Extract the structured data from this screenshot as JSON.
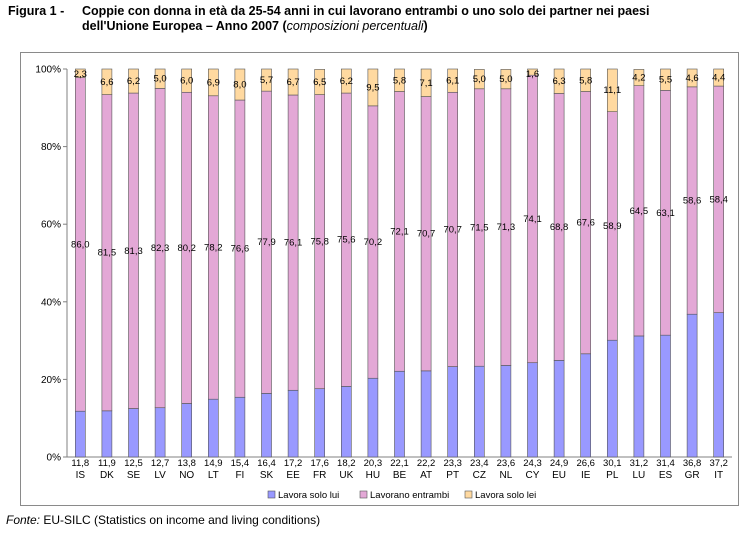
{
  "title": {
    "figure_label": "Figura 1 -",
    "line1": "Coppie con donna in età da 25-54 anni in cui lavorano entrambi o uno solo dei partner nei paesi",
    "line2": "dell'Unione Europea – Anno 2007 (",
    "line2_sub": "composizioni percentuali",
    "line2_end": ")"
  },
  "source": {
    "label": "Fonte:",
    "text": "EU-SILC (Statistics on income and living conditions)"
  },
  "chart_data": {
    "type": "bar",
    "stacked": true,
    "categories": [
      "IS",
      "DK",
      "SE",
      "LV",
      "NO",
      "LT",
      "FI",
      "SK",
      "EE",
      "FR",
      "UK",
      "HU",
      "BE",
      "AT",
      "PT",
      "CZ",
      "NL",
      "CY",
      "EU",
      "IE",
      "PL",
      "LU",
      "ES",
      "GR",
      "IT"
    ],
    "series": [
      {
        "name": "Lavora solo lui",
        "color": "#9999ff",
        "values": [
          11.8,
          11.9,
          12.5,
          12.7,
          13.8,
          14.9,
          15.4,
          16.4,
          17.2,
          17.6,
          18.2,
          20.3,
          22.1,
          22.2,
          23.3,
          23.4,
          23.6,
          24.3,
          24.9,
          26.6,
          30.1,
          31.2,
          31.4,
          36.8,
          37.2
        ],
        "labels": [
          "11,8",
          "11,9",
          "12,5",
          "12,7",
          "13,8",
          "14,9",
          "15,4",
          "16,4",
          "17,2",
          "17,6",
          "18,2",
          "20,3",
          "22,1",
          "22,2",
          "23,3",
          "23,4",
          "23,6",
          "24,3",
          "24,9",
          "26,6",
          "30,1",
          "31,2",
          "31,4",
          "36,8",
          "37,2"
        ]
      },
      {
        "name": "Lavorano entrambi",
        "color": "#e3a8d6",
        "values": [
          86.0,
          81.5,
          81.3,
          82.3,
          80.2,
          78.2,
          76.6,
          77.9,
          76.1,
          75.8,
          75.6,
          70.2,
          72.1,
          70.7,
          70.7,
          71.5,
          71.3,
          74.1,
          68.8,
          67.6,
          58.9,
          64.5,
          63.1,
          58.6,
          58.4
        ],
        "labels": [
          "86,0",
          "81,5",
          "81,3",
          "82,3",
          "80,2",
          "78,2",
          "76,6",
          "77,9",
          "76,1",
          "75,8",
          "75,6",
          "70,2",
          "72,1",
          "70,7",
          "70,7",
          "71,5",
          "71,3",
          "74,1",
          "68,8",
          "67,6",
          "58,9",
          "64,5",
          "63,1",
          "58,6",
          "58,4"
        ]
      },
      {
        "name": "Lavora solo lei",
        "color": "#ffd9a0",
        "values": [
          2.3,
          6.6,
          6.2,
          5.0,
          6.0,
          6.9,
          8.0,
          5.7,
          6.7,
          6.5,
          6.2,
          9.5,
          5.8,
          7.1,
          6.1,
          5.0,
          5.0,
          1.6,
          6.3,
          5.8,
          11.1,
          4.2,
          5.5,
          4.6,
          4.4
        ],
        "labels": [
          "2,3",
          "6,6",
          "6,2",
          "5,0",
          "6,0",
          "6,9",
          "8,0",
          "5,7",
          "6,7",
          "6,5",
          "6,2",
          "9,5",
          "5,8",
          "7,1",
          "6,1",
          "5,0",
          "5,0",
          "1,6",
          "6,3",
          "5,8",
          "11,1",
          "4,2",
          "5,5",
          "4,6",
          "4,4"
        ]
      }
    ],
    "ylim": [
      0,
      100
    ],
    "yticks": [
      0,
      20,
      40,
      60,
      80,
      100
    ],
    "ytick_labels": [
      "0%",
      "20%",
      "40%",
      "60%",
      "80%",
      "100%"
    ],
    "grid": "none",
    "legend_position": "bottom-right"
  }
}
